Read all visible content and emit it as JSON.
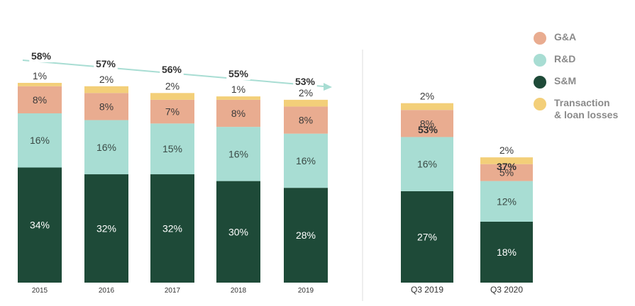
{
  "chart_data": {
    "type": "bar",
    "stacked": true,
    "categories": [
      "2015",
      "2016",
      "2017",
      "2018",
      "2019",
      "Q3 2019",
      "Q3 2020"
    ],
    "series": [
      {
        "name": "S&M",
        "color": "#1e4a38",
        "values": [
          34,
          32,
          32,
          30,
          28,
          27,
          18
        ],
        "labels": [
          "34%",
          "32%",
          "32%",
          "30%",
          "28%",
          "27%",
          "18%"
        ]
      },
      {
        "name": "R&D",
        "color": "#a8ddd3",
        "values": [
          16,
          16,
          15,
          16,
          16,
          16,
          12
        ],
        "labels": [
          "16%",
          "16%",
          "15%",
          "16%",
          "16%",
          "16%",
          "12%"
        ]
      },
      {
        "name": "G&A",
        "color": "#e9ac90",
        "values": [
          8,
          8,
          7,
          8,
          8,
          8,
          5
        ],
        "labels": [
          "8%",
          "8%",
          "7%",
          "8%",
          "8%",
          "8%",
          "5%"
        ]
      },
      {
        "name": "Transaction & loan losses",
        "color": "#f3cf79",
        "values": [
          1,
          2,
          2,
          1,
          2,
          2,
          2
        ],
        "labels": [
          "1%",
          "2%",
          "2%",
          "1%",
          "2%",
          "2%",
          "2%"
        ]
      }
    ],
    "totals": [
      58,
      57,
      56,
      55,
      53,
      53,
      37
    ],
    "total_labels": [
      "58%",
      "57%",
      "56%",
      "55%",
      "53%",
      "53%",
      "37%"
    ],
    "trend_arrow": true,
    "divider_between": [
      "2019",
      "Q3 2019"
    ],
    "legend_position": "top-right",
    "grid": false
  },
  "legend": {
    "items": [
      {
        "label": "G&A",
        "color": "#e9ac90"
      },
      {
        "label": "R&D",
        "color": "#a8ddd3"
      },
      {
        "label": "S&M",
        "color": "#1e4a38"
      },
      {
        "label": "Transaction\n& loan losses",
        "color": "#f3cf79"
      }
    ]
  }
}
